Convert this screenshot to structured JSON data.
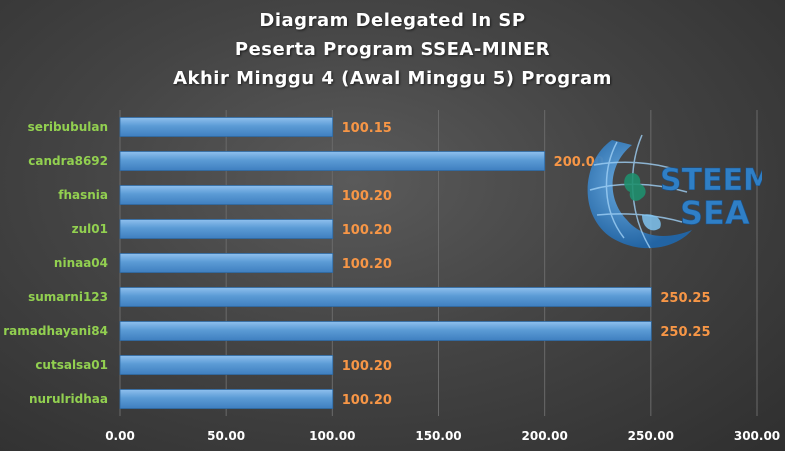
{
  "chart_data": {
    "type": "bar",
    "orientation": "horizontal",
    "title_lines": [
      "Diagram  Delegated  In  SP",
      "Peserta  Program  SSEA-MINER",
      "Akhir  Minggu  4  (Awal  Minggu  5)  Program"
    ],
    "categories": [
      "seribubulan",
      "candra8692",
      "fhasnia",
      "zul01",
      "ninaa04",
      "sumarni123",
      "ramadhayani84",
      "cutsalsa01",
      "nurulridhaa"
    ],
    "values": [
      100.15,
      200.0,
      100.2,
      100.2,
      100.2,
      250.25,
      250.25,
      100.2,
      100.2
    ],
    "data_labels": [
      "100.15",
      "200.00",
      "100.20",
      "100.20",
      "100.20",
      "250.25",
      "250.25",
      "100.20",
      "100.20"
    ],
    "xlim": [
      0,
      300
    ],
    "x_ticks": [
      0,
      50,
      100,
      150,
      200,
      250,
      300
    ],
    "x_tick_labels": [
      "0.00",
      "50.00",
      "100.00",
      "150.00",
      "200.00",
      "250.00",
      "300.00"
    ],
    "grid": "vertical",
    "legend": "none"
  },
  "logo": {
    "line1": "STEEM",
    "line2": "SEA"
  },
  "colors": {
    "bar": "#5b9bd5",
    "category_label": "#92d050",
    "data_label": "#f79646",
    "axis_label": "#ffffff",
    "title": "#ffffff",
    "grid": "#6a6a6a",
    "logo": "#3a86c8"
  }
}
